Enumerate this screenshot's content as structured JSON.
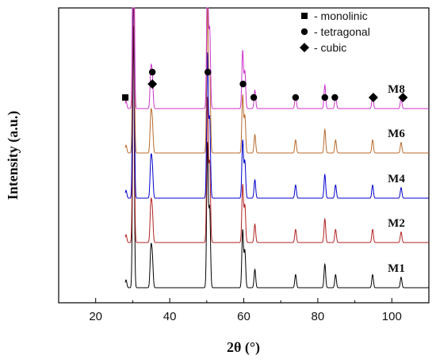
{
  "chart_data": {
    "type": "line",
    "xlabel": "2θ (°)",
    "ylabel": "Intensity (a.u.)",
    "xlim": [
      10,
      110
    ],
    "x_ticks": [
      20,
      40,
      60,
      80,
      100
    ],
    "grid": false,
    "series_colors": {
      "M1": "#000000",
      "M2": "#b22222",
      "M4": "#0000cc",
      "M6": "#b86a2c",
      "M8": "#cc33cc"
    },
    "series": [
      {
        "name": "M1",
        "baseline": 0
      },
      {
        "name": "M2",
        "baseline": 1
      },
      {
        "name": "M4",
        "baseline": 2
      },
      {
        "name": "M6",
        "baseline": 3
      },
      {
        "name": "M8",
        "baseline": 4
      }
    ],
    "peaks": [
      {
        "two_theta": 28.2,
        "height": 0.03
      },
      {
        "two_theta": 30.2,
        "height": 1.0
      },
      {
        "two_theta": 34.9,
        "height": 0.14
      },
      {
        "two_theta": 35.3,
        "height": 0.11
      },
      {
        "two_theta": 50.2,
        "height": 0.55
      },
      {
        "two_theta": 50.8,
        "height": 0.3
      },
      {
        "two_theta": 59.7,
        "height": 0.22
      },
      {
        "two_theta": 60.3,
        "height": 0.14
      },
      {
        "two_theta": 63.0,
        "height": 0.07
      },
      {
        "two_theta": 74.0,
        "height": 0.05
      },
      {
        "two_theta": 81.9,
        "height": 0.09
      },
      {
        "two_theta": 84.8,
        "height": 0.05
      },
      {
        "two_theta": 94.8,
        "height": 0.05
      },
      {
        "two_theta": 102.5,
        "height": 0.04
      }
    ],
    "legend": {
      "placement": "top-right",
      "entries": [
        {
          "symbol": "square",
          "label": "- monolinic"
        },
        {
          "symbol": "circle",
          "label": "- tetragonal"
        },
        {
          "symbol": "diamond",
          "label": "- cubic"
        }
      ]
    },
    "phase_markers": [
      {
        "two_theta": 28,
        "symbol": "square",
        "row": 0
      },
      {
        "two_theta": 35.3,
        "symbol": "circle",
        "row": 2
      },
      {
        "two_theta": 35.3,
        "symbol": "diamond",
        "row": 1
      },
      {
        "two_theta": 50.3,
        "symbol": "circle",
        "row": 2
      },
      {
        "two_theta": 59.8,
        "symbol": "circle",
        "row": 1
      },
      {
        "two_theta": 62.7,
        "symbol": "circle",
        "row": 0
      },
      {
        "two_theta": 74.0,
        "symbol": "circle",
        "row": 0
      },
      {
        "two_theta": 81.9,
        "symbol": "circle",
        "row": 0
      },
      {
        "two_theta": 84.6,
        "symbol": "circle",
        "row": 0
      },
      {
        "two_theta": 95.0,
        "symbol": "diamond",
        "row": 0
      },
      {
        "two_theta": 103.0,
        "symbol": "diamond",
        "row": 0
      }
    ]
  }
}
